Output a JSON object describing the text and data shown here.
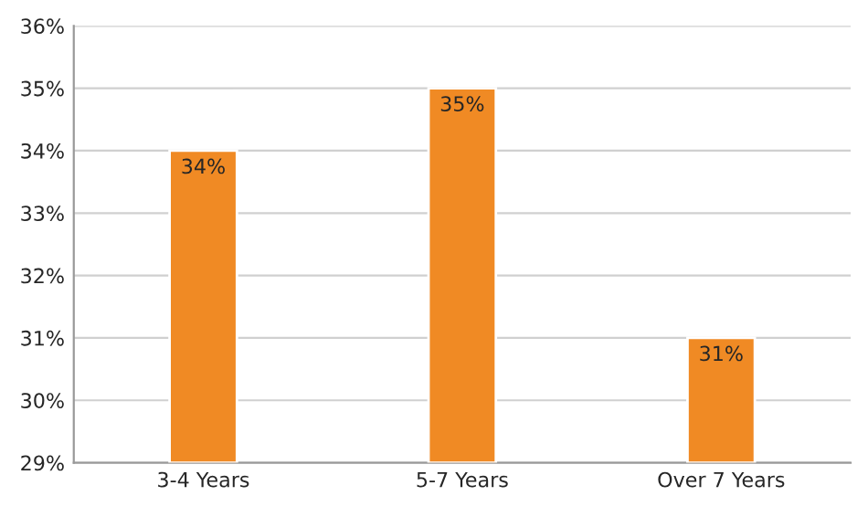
{
  "chart_data": {
    "type": "bar",
    "categories": [
      "3-4 Years",
      "5-7 Years",
      "Over 7 Years"
    ],
    "values": [
      34,
      35,
      31
    ],
    "value_labels": [
      "34%",
      "35%",
      "31%"
    ],
    "color": "#f08a24",
    "ylim": [
      29,
      36
    ],
    "yticks": [
      {
        "value": 29,
        "label": "29%"
      },
      {
        "value": 30,
        "label": "30%"
      },
      {
        "value": 31,
        "label": "31%"
      },
      {
        "value": 32,
        "label": "32%"
      },
      {
        "value": 33,
        "label": "33%"
      },
      {
        "value": 34,
        "label": "34%"
      },
      {
        "value": 35,
        "label": "35%"
      },
      {
        "value": 36,
        "label": "36%"
      }
    ],
    "grid": "y",
    "legend": false
  }
}
